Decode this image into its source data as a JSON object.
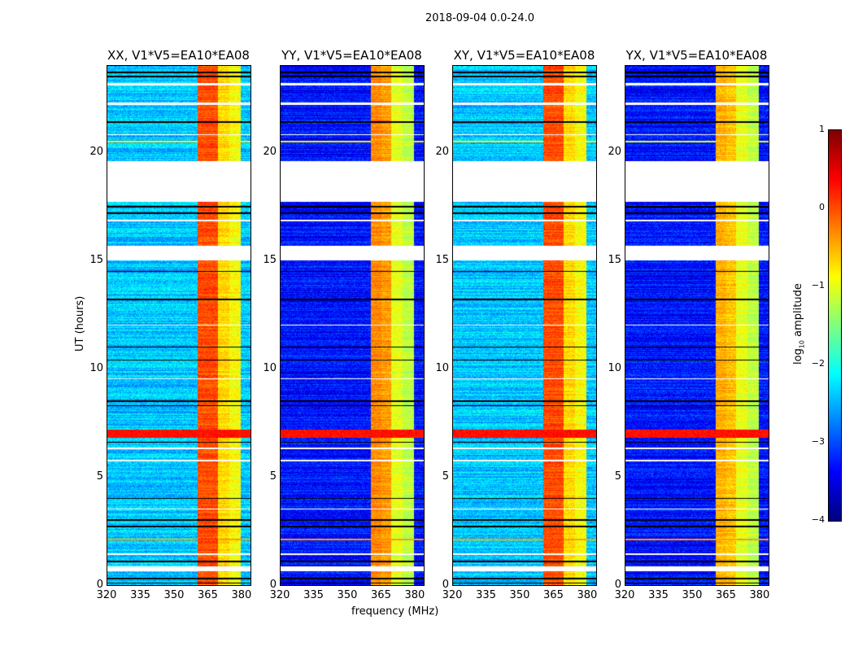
{
  "chart_data": {
    "type": "heatmap",
    "title": "2018-09-04 0.0-24.0",
    "xlabel": "frequency (MHz)",
    "ylabel": "UT (hours)",
    "xlim": [
      320,
      384
    ],
    "ylim": [
      0,
      24
    ],
    "xticks": [
      "320",
      "335",
      "350",
      "365",
      "380"
    ],
    "yticks": [
      "0",
      "5",
      "10",
      "15",
      "20"
    ],
    "colorbar": {
      "label_main": "log",
      "label_sub": "10",
      "label_tail": " amplitude",
      "range": [
        -4,
        1
      ],
      "ticks": [
        "1",
        "0",
        "−1",
        "−2",
        "−3",
        "−4"
      ],
      "colormap": "jet"
    },
    "panels": [
      {
        "title": "XX, V1*V5=EA10*EA08",
        "background_log_amp": -2.4,
        "band_log_amp": [
          0.0,
          0.0,
          -0.7,
          -0.9
        ]
      },
      {
        "title": "YY, V1*V5=EA10*EA08",
        "background_log_amp": -3.3,
        "band_log_amp": [
          -0.3,
          -0.4,
          -1.0,
          -1.2
        ]
      },
      {
        "title": "XY, V1*V5=EA10*EA08",
        "background_log_amp": -2.4,
        "band_log_amp": [
          0.0,
          0.0,
          -0.7,
          -0.9
        ]
      },
      {
        "title": "YX, V1*V5=EA10*EA08",
        "background_log_amp": -3.3,
        "band_log_amp": [
          -0.5,
          -0.6,
          -1.0,
          -1.2
        ]
      }
    ],
    "band_edges_mhz": [
      [
        360.5,
        365
      ],
      [
        365,
        369.5
      ],
      [
        369.5,
        374.5
      ],
      [
        374.5,
        379.5
      ]
    ],
    "no_data_hours": [
      [
        17.7,
        19.6
      ],
      [
        15.0,
        15.7
      ],
      [
        0.65,
        0.85
      ],
      [
        23.1,
        23.2
      ],
      [
        22.2,
        22.3
      ],
      [
        12.0,
        12.05
      ],
      [
        9.5,
        9.55
      ],
      [
        6.3,
        6.35
      ],
      [
        5.7,
        5.78
      ],
      [
        3.5,
        3.55
      ],
      [
        1.4,
        1.45
      ],
      [
        20.8,
        20.85
      ],
      [
        16.8,
        16.9
      ]
    ],
    "flagged_black_hours": [
      0.1,
      0.3,
      1.1,
      2.7,
      3.0,
      4.0,
      6.6,
      8.3,
      8.5,
      10.4,
      11.0,
      13.2,
      14.5,
      17.2,
      17.5,
      21.4,
      23.5,
      23.7
    ],
    "rfi_hours": [
      {
        "hour": 7.0,
        "width": 0.35,
        "log_amp": 0.3
      },
      {
        "hour": 2.1,
        "width": 0.08,
        "log_amp": -0.4
      },
      {
        "hour": 20.5,
        "width": 0.05,
        "log_amp": -1.0
      }
    ]
  }
}
